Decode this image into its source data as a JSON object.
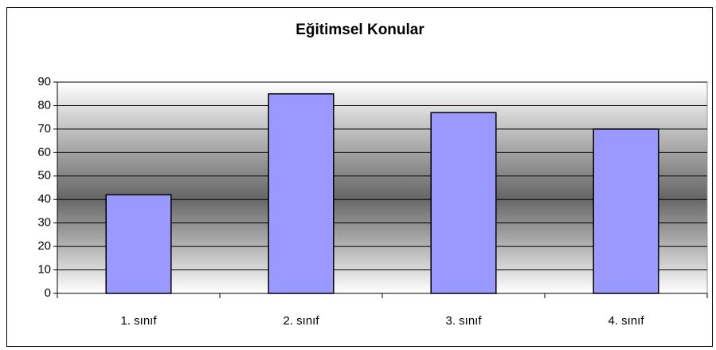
{
  "chart_data": {
    "type": "bar",
    "title": "Eğitimsel Konular",
    "categories": [
      "1. sınıf",
      "2. sınıf",
      "3. sınıf",
      "4. sınıf"
    ],
    "values": [
      42,
      85,
      77,
      70
    ],
    "color": "#9999ff",
    "ylim": [
      0,
      90
    ],
    "yticks": [
      0,
      10,
      20,
      30,
      40,
      50,
      60,
      70,
      80,
      90
    ],
    "grid": true
  }
}
